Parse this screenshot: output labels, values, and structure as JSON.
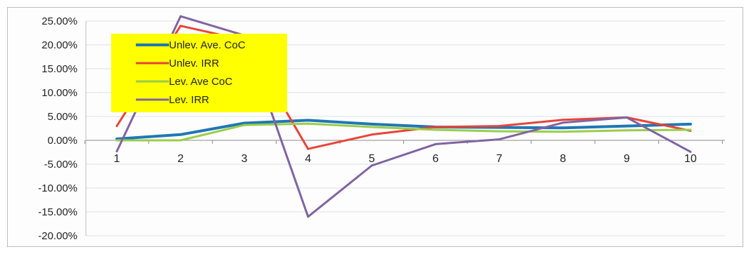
{
  "chart_data": {
    "type": "line",
    "title": "",
    "xlabel": "",
    "ylabel": "",
    "categories": [
      "1",
      "2",
      "3",
      "4",
      "5",
      "6",
      "7",
      "8",
      "9",
      "10"
    ],
    "y_ticks": [
      "25.00%",
      "20.00%",
      "15.00%",
      "10.00%",
      "5.00%",
      "0.00%",
      "-5.00%",
      "-10.00%",
      "-15.00%",
      "-20.00%"
    ],
    "ylim": [
      -20,
      25
    ],
    "y_unit": "%",
    "grid": true,
    "legend_position": "top-left",
    "legend_background": "#ffff00",
    "series": [
      {
        "name": "Unlev. Ave. CoC",
        "color": "#1f77b4",
        "values": [
          0.3,
          1.2,
          3.6,
          4.2,
          3.4,
          2.8,
          2.7,
          2.6,
          3.0,
          3.4
        ]
      },
      {
        "name": "Unlev. IRR",
        "color": "#e8443a",
        "values": [
          3.0,
          24.0,
          21.0,
          -1.8,
          1.2,
          2.8,
          3.0,
          4.3,
          4.8,
          2.0
        ]
      },
      {
        "name": "Lev. Ave CoC",
        "color": "#9acd4a",
        "values": [
          0.0,
          0.0,
          3.2,
          3.5,
          2.8,
          2.2,
          1.9,
          1.8,
          2.1,
          2.2
        ]
      },
      {
        "name": "Lev. IRR",
        "color": "#8064a2",
        "values": [
          -2.3,
          26.0,
          22.0,
          -16.0,
          -5.3,
          -0.8,
          0.2,
          3.7,
          4.8,
          -2.4
        ]
      }
    ]
  }
}
